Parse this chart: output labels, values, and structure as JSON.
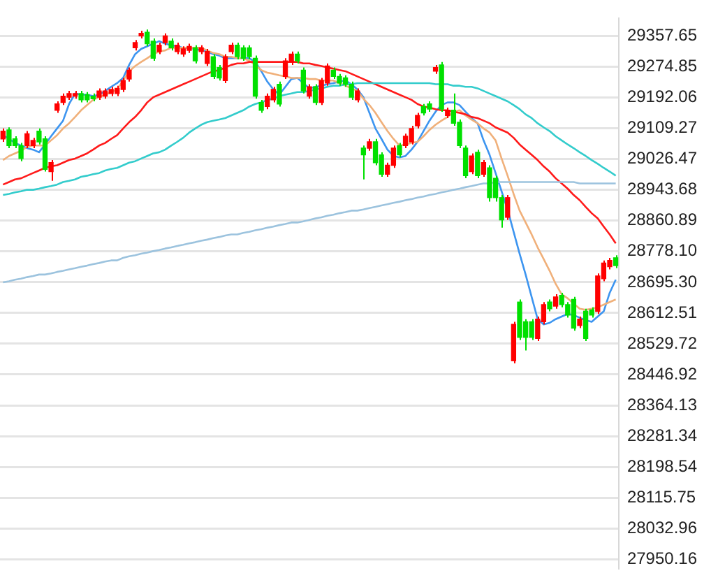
{
  "chart_data": {
    "type": "candlestick",
    "categories": [
      null,
      null,
      null,
      null,
      null,
      null,
      null,
      null,
      null,
      null,
      null,
      null,
      null,
      null,
      null,
      null,
      null,
      null,
      null,
      null,
      null,
      null,
      null,
      null,
      null,
      null,
      null,
      null,
      null,
      null,
      null,
      null,
      null,
      null,
      null,
      null,
      null,
      null,
      null,
      null,
      null,
      null,
      null,
      null,
      null,
      null,
      null,
      null,
      null,
      null,
      null,
      null,
      null,
      null,
      null,
      null,
      null,
      null,
      null,
      null,
      null,
      null,
      null,
      null,
      null,
      null,
      null,
      null,
      null,
      null,
      null,
      null,
      null,
      null,
      null,
      null,
      null,
      null,
      null,
      null,
      null,
      null,
      null,
      null,
      null,
      null,
      null,
      null,
      null,
      null,
      null,
      null,
      null,
      null,
      null,
      null,
      null,
      null,
      null,
      null,
      null,
      null,
      null
    ],
    "ohlc": [
      [
        29081,
        29109,
        29073,
        29102
      ],
      [
        29105,
        29112,
        29056,
        29063
      ],
      [
        29081,
        29088,
        29056,
        29063
      ],
      [
        29063,
        29070,
        29021,
        29028
      ],
      [
        29063,
        29102,
        29056,
        29095
      ],
      [
        29063,
        29084,
        29056,
        29077
      ],
      [
        29102,
        29109,
        29066,
        29073
      ],
      [
        29081,
        29088,
        28993,
        28999
      ],
      [
        28993,
        29024,
        28968,
        29017
      ],
      [
        29158,
        29182,
        29151,
        29175
      ],
      [
        29179,
        29203,
        29172,
        29196
      ],
      [
        29193,
        29210,
        29186,
        29203
      ],
      [
        29196,
        29210,
        29189,
        29203
      ],
      [
        29203,
        29210,
        29179,
        29186
      ],
      [
        29200,
        29207,
        29179,
        29186
      ],
      [
        29196,
        29203,
        29182,
        29189
      ],
      [
        29193,
        29217,
        29186,
        29210
      ],
      [
        29196,
        29217,
        29189,
        29210
      ],
      [
        29203,
        29221,
        29196,
        29214
      ],
      [
        29203,
        29224,
        29196,
        29217
      ],
      [
        29214,
        29245,
        29207,
        29238
      ],
      [
        29242,
        29273,
        29235,
        29266
      ],
      [
        29326,
        29347,
        29319,
        29340
      ],
      [
        29358,
        29372,
        29351,
        29365
      ],
      [
        29368,
        29375,
        29330,
        29337
      ],
      [
        29344,
        29351,
        29291,
        29298
      ],
      [
        29316,
        29340,
        29309,
        29333
      ],
      [
        29340,
        29365,
        29333,
        29358
      ],
      [
        29344,
        29351,
        29319,
        29326
      ],
      [
        29316,
        29340,
        29309,
        29333
      ],
      [
        29309,
        29330,
        29302,
        29323
      ],
      [
        29319,
        29337,
        29312,
        29330
      ],
      [
        29326,
        29333,
        29284,
        29291
      ],
      [
        29316,
        29333,
        29309,
        29326
      ],
      [
        29284,
        29323,
        29277,
        29316
      ],
      [
        29302,
        29309,
        29242,
        29249
      ],
      [
        29273,
        29280,
        29238,
        29245
      ],
      [
        29238,
        29309,
        29231,
        29302
      ],
      [
        29316,
        29340,
        29309,
        29333
      ],
      [
        29333,
        29340,
        29295,
        29302
      ],
      [
        29326,
        29333,
        29291,
        29298
      ],
      [
        29326,
        29333,
        29295,
        29302
      ],
      [
        29298,
        29305,
        29189,
        29196
      ],
      [
        29179,
        29186,
        29151,
        29158
      ],
      [
        29168,
        29203,
        29161,
        29196
      ],
      [
        29186,
        29221,
        29179,
        29214
      ],
      [
        29228,
        29235,
        29168,
        29175
      ],
      [
        29249,
        29298,
        29242,
        29291
      ],
      [
        29288,
        29316,
        29280,
        29309
      ],
      [
        29309,
        29316,
        29284,
        29291
      ],
      [
        29266,
        29273,
        29203,
        29210
      ],
      [
        29196,
        29228,
        29189,
        29221
      ],
      [
        29221,
        29228,
        29172,
        29179
      ],
      [
        29179,
        29245,
        29172,
        29238
      ],
      [
        29231,
        29284,
        29224,
        29277
      ],
      [
        29266,
        29273,
        29242,
        29249
      ],
      [
        29249,
        29256,
        29224,
        29231
      ],
      [
        29245,
        29252,
        29221,
        29228
      ],
      [
        29228,
        29235,
        29186,
        29193
      ],
      [
        29186,
        29217,
        29179,
        29210
      ],
      [
        29056,
        29063,
        28972,
        29038
      ],
      [
        29056,
        29081,
        29049,
        29073
      ],
      [
        29073,
        29081,
        29010,
        29017
      ],
      [
        29038,
        29045,
        28979,
        28986
      ],
      [
        28986,
        29017,
        28979,
        29010
      ],
      [
        29010,
        29063,
        29003,
        29056
      ],
      [
        29063,
        29070,
        29031,
        29038
      ],
      [
        29063,
        29095,
        29056,
        29088
      ],
      [
        29073,
        29116,
        29066,
        29109
      ],
      [
        29116,
        29151,
        29109,
        29144
      ],
      [
        29168,
        29175,
        29144,
        29151
      ],
      [
        29175,
        29182,
        29154,
        29161
      ],
      [
        29263,
        29280,
        29256,
        29273
      ],
      [
        29280,
        29288,
        29154,
        29161
      ],
      [
        29144,
        29165,
        29137,
        29158
      ],
      [
        29158,
        29203,
        29116,
        29123
      ],
      [
        29126,
        29133,
        29056,
        29063
      ],
      [
        29056,
        29063,
        28975,
        28982
      ],
      [
        28993,
        29042,
        28986,
        29035
      ],
      [
        29045,
        29052,
        28975,
        28982
      ],
      [
        28986,
        29024,
        28979,
        29017
      ],
      [
        29003,
        29010,
        28912,
        28923
      ],
      [
        28975,
        28982,
        28912,
        28923
      ],
      [
        28923,
        28930,
        28842,
        28863
      ],
      [
        28870,
        28930,
        28863,
        28923
      ],
      [
        28484,
        28589,
        28477,
        28582
      ],
      [
        28642,
        28649,
        28540,
        28547
      ],
      [
        28589,
        28596,
        28512,
        28547
      ],
      [
        28589,
        28596,
        28540,
        28547
      ],
      [
        28544,
        28603,
        28537,
        28596
      ],
      [
        28589,
        28642,
        28582,
        28635
      ],
      [
        28642,
        28649,
        28617,
        28624
      ],
      [
        28631,
        28663,
        28624,
        28656
      ],
      [
        28660,
        28667,
        28628,
        28635
      ],
      [
        28635,
        28642,
        28600,
        28607
      ],
      [
        28649,
        28656,
        28565,
        28572
      ],
      [
        28579,
        28603,
        28572,
        28596
      ],
      [
        28617,
        28624,
        28537,
        28544
      ],
      [
        28621,
        28628,
        28600,
        28607
      ],
      [
        28617,
        28719,
        28610,
        28712
      ],
      [
        28705,
        28754,
        28698,
        28747
      ],
      [
        28737,
        28761,
        28730,
        28754
      ],
      [
        28761,
        28768,
        28733,
        28740
      ]
    ],
    "colors": [
      "#ff0000",
      "#00e000",
      "#00e000",
      "#00e000",
      "#ff0000",
      "#ff0000",
      "#00e000",
      "#00e000",
      "#ff0000",
      "#ff0000",
      "#ff0000",
      "#ff0000",
      "#ff0000",
      "#00e000",
      "#00e000",
      "#00e000",
      "#ff0000",
      "#ff0000",
      "#ff0000",
      "#ff0000",
      "#ff0000",
      "#ff0000",
      "#ff0000",
      "#ff0000",
      "#00e000",
      "#00e000",
      "#ff0000",
      "#ff0000",
      "#00e000",
      "#ff0000",
      "#ff0000",
      "#ff0000",
      "#00e000",
      "#ff0000",
      "#ff0000",
      "#00e000",
      "#00e000",
      "#ff0000",
      "#ff0000",
      "#00e000",
      "#00e000",
      "#00e000",
      "#00e000",
      "#00e000",
      "#ff0000",
      "#ff0000",
      "#00e000",
      "#ff0000",
      "#ff0000",
      "#00e000",
      "#00e000",
      "#ff0000",
      "#00e000",
      "#ff0000",
      "#ff0000",
      "#00e000",
      "#00e000",
      "#00e000",
      "#00e000",
      "#ff0000",
      "#00e000",
      "#ff0000",
      "#00e000",
      "#00e000",
      "#ff0000",
      "#ff0000",
      "#00e000",
      "#ff0000",
      "#ff0000",
      "#ff0000",
      "#00e000",
      "#00e000",
      "#ff0000",
      "#00e000",
      "#ff0000",
      "#00e000",
      "#00e000",
      "#00e000",
      "#ff0000",
      "#00e000",
      "#ff0000",
      "#00e000",
      "#00e000",
      "#00e000",
      "#ff0000",
      "#ff0000",
      "#00e000",
      "#00e000",
      "#00e000",
      "#ff0000",
      "#ff0000",
      "#00e000",
      "#ff0000",
      "#00e000",
      "#00e000",
      "#00e000",
      "#ff0000",
      "#00e000",
      "#00e000",
      "#ff0000",
      "#ff0000",
      "#ff0000",
      "#00e000"
    ],
    "series": [
      {
        "type": "line",
        "color": "#9cc3de",
        "values": [
          28695,
          28698,
          28702,
          28705,
          28709,
          28712,
          28716,
          28716,
          28719,
          28723,
          28726,
          28730,
          28733,
          28737,
          28740,
          28744,
          28747,
          28751,
          28754,
          28754,
          28761,
          28765,
          28768,
          28772,
          28775,
          28779,
          28782,
          28786,
          28789,
          28793,
          28796,
          28800,
          28803,
          28807,
          28810,
          28814,
          28817,
          28821,
          28824,
          28824,
          28828,
          28831,
          28835,
          28838,
          28842,
          28845,
          28849,
          28852,
          28856,
          28856,
          28859,
          28863,
          28867,
          28870,
          28874,
          28877,
          28881,
          28884,
          28888,
          28888,
          28891,
          28895,
          28898,
          28902,
          28905,
          28909,
          28912,
          28916,
          28919,
          28923,
          28926,
          28930,
          28933,
          28937,
          28940,
          28944,
          28947,
          28951,
          28954,
          28958,
          28961,
          28961,
          28965,
          28965,
          28965,
          28965,
          28965,
          28965,
          28965,
          28965,
          28965,
          28965,
          28965,
          28965,
          28965,
          28965,
          28961,
          28961,
          28961,
          28961,
          28961,
          28961,
          28961
        ]
      },
      {
        "type": "line",
        "color": "#33cccc",
        "values": [
          28930,
          28933,
          28937,
          28940,
          28944,
          28944,
          28947,
          28951,
          28954,
          28958,
          28965,
          28968,
          28972,
          28979,
          28982,
          28986,
          28989,
          28996,
          29000,
          29003,
          29010,
          29017,
          29021,
          29028,
          29035,
          29042,
          29045,
          29052,
          29063,
          29073,
          29084,
          29098,
          29109,
          29119,
          29126,
          29130,
          29133,
          29137,
          29144,
          29151,
          29158,
          29168,
          29175,
          29179,
          29186,
          29189,
          29196,
          29200,
          29203,
          29207,
          29207,
          29210,
          29214,
          29217,
          29221,
          29224,
          29224,
          29228,
          29228,
          29231,
          29231,
          29231,
          29231,
          29231,
          29231,
          29231,
          29231,
          29231,
          29231,
          29231,
          29231,
          29231,
          29228,
          29228,
          29228,
          29224,
          29224,
          29221,
          29221,
          29217,
          29210,
          29203,
          29196,
          29189,
          29182,
          29172,
          29161,
          29147,
          29137,
          29123,
          29112,
          29102,
          29088,
          29077,
          29066,
          29056,
          29045,
          29035,
          29024,
          29014,
          29003,
          28993,
          28982
        ]
      },
      {
        "type": "line",
        "color": "#ff1a1a",
        "values": [
          28958,
          28965,
          28972,
          28975,
          28982,
          28989,
          28996,
          29003,
          29007,
          29010,
          29017,
          29024,
          29028,
          29035,
          29042,
          29052,
          29063,
          29070,
          29081,
          29091,
          29109,
          29126,
          29140,
          29158,
          29179,
          29193,
          29200,
          29207,
          29214,
          29221,
          29228,
          29235,
          29242,
          29249,
          29256,
          29263,
          29266,
          29273,
          29280,
          29284,
          29284,
          29288,
          29288,
          29288,
          29288,
          29288,
          29288,
          29288,
          29288,
          29288,
          29284,
          29284,
          29280,
          29277,
          29273,
          29270,
          29266,
          29263,
          29256,
          29249,
          29242,
          29235,
          29228,
          29221,
          29214,
          29207,
          29200,
          29193,
          29186,
          29175,
          29168,
          29165,
          29161,
          29158,
          29158,
          29154,
          29151,
          29147,
          29140,
          29137,
          29130,
          29123,
          29112,
          29105,
          29098,
          29084,
          29066,
          29052,
          29038,
          29024,
          29007,
          28993,
          28975,
          28961,
          28947,
          28930,
          28916,
          28898,
          28881,
          28867,
          28845,
          28824,
          28800
        ]
      },
      {
        "type": "line",
        "color": "#f0b07a",
        "values": [
          29024,
          29035,
          29042,
          29049,
          29059,
          29063,
          29063,
          29063,
          29077,
          29091,
          29109,
          29123,
          29140,
          29158,
          29172,
          29186,
          29193,
          29200,
          29207,
          29214,
          29238,
          29263,
          29277,
          29288,
          29298,
          29309,
          29316,
          29319,
          29326,
          29326,
          29326,
          29326,
          29326,
          29326,
          29319,
          29312,
          29309,
          29302,
          29302,
          29298,
          29298,
          29291,
          29280,
          29266,
          29259,
          29256,
          29252,
          29249,
          29245,
          29245,
          29245,
          29242,
          29242,
          29238,
          29238,
          29238,
          29231,
          29224,
          29217,
          29210,
          29189,
          29172,
          29151,
          29126,
          29102,
          29081,
          29063,
          29066,
          29070,
          29073,
          29088,
          29105,
          29119,
          29130,
          29140,
          29154,
          29158,
          29144,
          29133,
          29123,
          29109,
          29098,
          29077,
          29028,
          28982,
          28933,
          28888,
          28856,
          28824,
          28789,
          28758,
          28726,
          28691,
          28663,
          28652,
          28638,
          28624,
          28621,
          28624,
          28628,
          28635,
          28642,
          28649
        ]
      },
      {
        "type": "line",
        "color": "#3d95f0",
        "values": [
          29091,
          29081,
          29070,
          29063,
          29056,
          29052,
          29045,
          29066,
          29088,
          29109,
          29130,
          29175,
          29203,
          29200,
          29200,
          29196,
          29200,
          29210,
          29221,
          29231,
          29245,
          29280,
          29309,
          29323,
          29330,
          29337,
          29344,
          29337,
          29333,
          29330,
          29326,
          29326,
          29323,
          29319,
          29316,
          29309,
          29305,
          29298,
          29298,
          29298,
          29298,
          29298,
          29288,
          29263,
          29235,
          29214,
          29200,
          29221,
          29242,
          29245,
          29231,
          29217,
          29221,
          29224,
          29228,
          29231,
          29235,
          29238,
          29228,
          29214,
          29193,
          29151,
          29109,
          29081,
          29052,
          29035,
          29031,
          29035,
          29052,
          29073,
          29102,
          29130,
          29154,
          29172,
          29179,
          29179,
          29172,
          29154,
          29137,
          29123,
          29077,
          29038,
          28989,
          28940,
          28891,
          28831,
          28772,
          28716,
          28656,
          28596,
          28582,
          28586,
          28596,
          28603,
          28610,
          28607,
          28600,
          28593,
          28589,
          28603,
          28617,
          28667,
          28702
        ]
      }
    ],
    "ylim": [
      27925,
      29405
    ],
    "yticks": [
      29357.65,
      29274.85,
      29192.06,
      29109.27,
      29026.47,
      28943.68,
      28860.89,
      {
        "value": 28778.1,
        "label": "28778.10"
      },
      {
        "value": 28695.3,
        "label": "28695.30"
      },
      28612.51,
      28529.72,
      28446.92,
      28364.13,
      28281.34,
      28198.54,
      28115.75,
      28032.96,
      27950.16
    ],
    "grid": "y",
    "tick_labels": "y"
  }
}
